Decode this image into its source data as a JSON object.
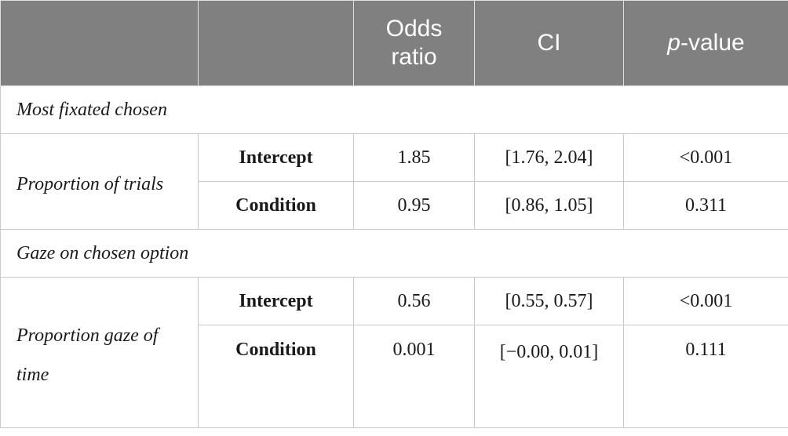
{
  "header": {
    "col1": "",
    "col2": "",
    "odds_ratio": "Odds ratio",
    "ci": "CI",
    "p_italic": "p",
    "p_rest": "-value"
  },
  "sections": [
    {
      "title": "Most fixated chosen",
      "label": "Proportion of trials",
      "rows": [
        {
          "term": "Intercept",
          "odds": "1.85",
          "ci": "[1.76, 2.04]",
          "p": "<0.001"
        },
        {
          "term": "Condition",
          "odds": "0.95",
          "ci": "[0.86, 1.05]",
          "p": "0.311"
        }
      ]
    },
    {
      "title": "Gaze on chosen option",
      "label": "Proportion gaze of time",
      "rows": [
        {
          "term": "Intercept",
          "odds": "0.56",
          "ci": "[0.55, 0.57]",
          "p": "<0.001"
        },
        {
          "term": "Condition",
          "odds": "0.001",
          "ci": "[−0.00, 0.01]",
          "p": "0.111"
        }
      ]
    }
  ]
}
